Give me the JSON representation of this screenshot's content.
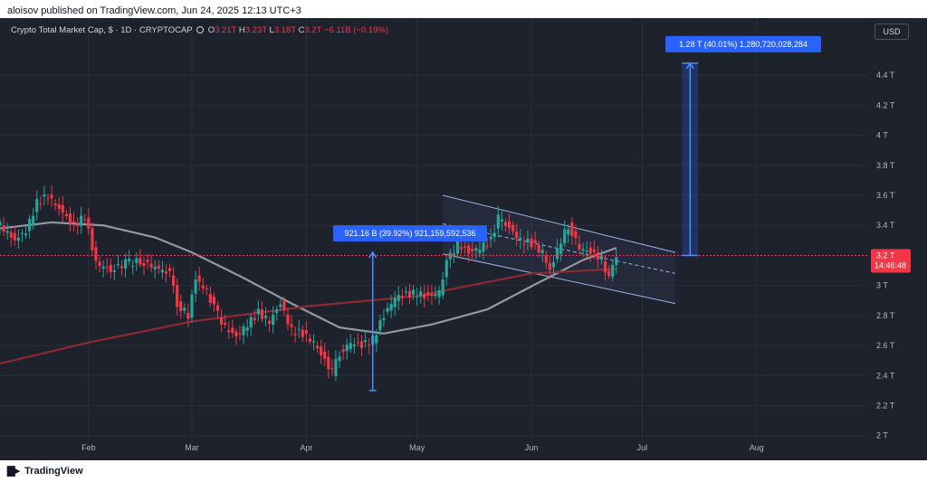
{
  "header": {
    "published_text": "aloisov published on TradingView.com, Jun 24, 2025 12:13 UTC+3"
  },
  "legend": {
    "symbol": "Crypto Total Market Cap, $ · 1D · CRYPTOCAP",
    "o_label": "O",
    "o_value": "3.21T",
    "h_label": "H",
    "h_value": "3.23T",
    "l_label": "L",
    "l_value": "3.18T",
    "c_label": "C",
    "c_value": "3.2T",
    "change": "−6.11B (−0.19%)"
  },
  "currency_button": "USD",
  "footer": {
    "brand": "TradingView",
    "logo_icon": "tradingview-logo-icon"
  },
  "colors": {
    "background": "#1e222d",
    "grid": "#2a2e39",
    "up": "#26a69a",
    "down": "#f23645",
    "ma_short": "#9598a1",
    "ma_long": "#8b2a33",
    "channel": "#9db2e6",
    "measure": "#2962ff",
    "measure_label_bg": "#2962ff",
    "price_label": "#f23645"
  },
  "chart_data": {
    "type": "candlestick",
    "title": "Crypto Total Market Cap",
    "y_unit": "T",
    "ylim": [
      1.95,
      4.6
    ],
    "y_ticks": [
      {
        "v": 4.4,
        "label": "4.4 T"
      },
      {
        "v": 4.2,
        "label": "4.2 T"
      },
      {
        "v": 4.0,
        "label": "4 T"
      },
      {
        "v": 3.8,
        "label": "3.8 T"
      },
      {
        "v": 3.6,
        "label": "3.6 T"
      },
      {
        "v": 3.4,
        "label": "3.4 T"
      },
      {
        "v": 3.0,
        "label": "3 T"
      },
      {
        "v": 2.8,
        "label": "2.8 T"
      },
      {
        "v": 2.6,
        "label": "2.6 T"
      },
      {
        "v": 2.4,
        "label": "2.4 T"
      },
      {
        "v": 2.2,
        "label": "2.2 T"
      },
      {
        "v": 2.0,
        "label": "2 T"
      }
    ],
    "x_range": [
      "2025-01-08",
      "2025-08-31"
    ],
    "x_ticks": [
      {
        "date": "2025-02-01",
        "label": "Feb"
      },
      {
        "date": "2025-03-01",
        "label": "Mar"
      },
      {
        "date": "2025-04-01",
        "label": "Apr"
      },
      {
        "date": "2025-05-01",
        "label": "May"
      },
      {
        "date": "2025-06-01",
        "label": "Jun"
      },
      {
        "date": "2025-07-01",
        "label": "Jul"
      },
      {
        "date": "2025-08-01",
        "label": "Aug"
      }
    ],
    "grid": true,
    "current_price": {
      "value": 3.2,
      "label": "3.2 T",
      "countdown": "14:46:48"
    },
    "closes": [
      {
        "date": "2025-01-08",
        "close": 3.4
      },
      {
        "date": "2025-01-12",
        "close": 3.3
      },
      {
        "date": "2025-01-15",
        "close": 3.36
      },
      {
        "date": "2025-01-18",
        "close": 3.55
      },
      {
        "date": "2025-01-21",
        "close": 3.6
      },
      {
        "date": "2025-01-25",
        "close": 3.48
      },
      {
        "date": "2025-01-28",
        "close": 3.4
      },
      {
        "date": "2025-01-31",
        "close": 3.46
      },
      {
        "date": "2025-02-03",
        "close": 3.15
      },
      {
        "date": "2025-02-07",
        "close": 3.1
      },
      {
        "date": "2025-02-11",
        "close": 3.15
      },
      {
        "date": "2025-02-15",
        "close": 3.16
      },
      {
        "date": "2025-02-19",
        "close": 3.12
      },
      {
        "date": "2025-02-23",
        "close": 3.08
      },
      {
        "date": "2025-02-25",
        "close": 2.88
      },
      {
        "date": "2025-02-28",
        "close": 2.8
      },
      {
        "date": "2025-03-02",
        "close": 3.05
      },
      {
        "date": "2025-03-05",
        "close": 2.96
      },
      {
        "date": "2025-03-07",
        "close": 2.85
      },
      {
        "date": "2025-03-10",
        "close": 2.72
      },
      {
        "date": "2025-03-13",
        "close": 2.66
      },
      {
        "date": "2025-03-16",
        "close": 2.74
      },
      {
        "date": "2025-03-19",
        "close": 2.82
      },
      {
        "date": "2025-03-22",
        "close": 2.76
      },
      {
        "date": "2025-03-25",
        "close": 2.88
      },
      {
        "date": "2025-03-28",
        "close": 2.7
      },
      {
        "date": "2025-03-31",
        "close": 2.68
      },
      {
        "date": "2025-04-03",
        "close": 2.62
      },
      {
        "date": "2025-04-06",
        "close": 2.5
      },
      {
        "date": "2025-04-08",
        "close": 2.42
      },
      {
        "date": "2025-04-10",
        "close": 2.55
      },
      {
        "date": "2025-04-13",
        "close": 2.62
      },
      {
        "date": "2025-04-16",
        "close": 2.6
      },
      {
        "date": "2025-04-19",
        "close": 2.64
      },
      {
        "date": "2025-04-22",
        "close": 2.8
      },
      {
        "date": "2025-04-25",
        "close": 2.92
      },
      {
        "date": "2025-04-28",
        "close": 2.94
      },
      {
        "date": "2025-05-01",
        "close": 2.95
      },
      {
        "date": "2025-05-04",
        "close": 2.92
      },
      {
        "date": "2025-05-07",
        "close": 2.96
      },
      {
        "date": "2025-05-09",
        "close": 3.15
      },
      {
        "date": "2025-05-12",
        "close": 3.28
      },
      {
        "date": "2025-05-15",
        "close": 3.22
      },
      {
        "date": "2025-05-18",
        "close": 3.25
      },
      {
        "date": "2025-05-21",
        "close": 3.3
      },
      {
        "date": "2025-05-23",
        "close": 3.45
      },
      {
        "date": "2025-05-26",
        "close": 3.38
      },
      {
        "date": "2025-05-29",
        "close": 3.3
      },
      {
        "date": "2025-06-01",
        "close": 3.28
      },
      {
        "date": "2025-06-04",
        "close": 3.22
      },
      {
        "date": "2025-06-06",
        "close": 3.1
      },
      {
        "date": "2025-06-09",
        "close": 3.3
      },
      {
        "date": "2025-06-11",
        "close": 3.4
      },
      {
        "date": "2025-06-14",
        "close": 3.25
      },
      {
        "date": "2025-06-17",
        "close": 3.22
      },
      {
        "date": "2025-06-20",
        "close": 3.18
      },
      {
        "date": "2025-06-22",
        "close": 3.04
      },
      {
        "date": "2025-06-24",
        "close": 3.2
      }
    ],
    "series": [
      {
        "name": "",
        "kind": "moving_average",
        "color": "#9598a1",
        "points": [
          {
            "date": "2025-01-08",
            "v": 3.38
          },
          {
            "date": "2025-01-22",
            "v": 3.42
          },
          {
            "date": "2025-02-05",
            "v": 3.4
          },
          {
            "date": "2025-02-19",
            "v": 3.32
          },
          {
            "date": "2025-03-01",
            "v": 3.22
          },
          {
            "date": "2025-03-15",
            "v": 3.05
          },
          {
            "date": "2025-03-28",
            "v": 2.88
          },
          {
            "date": "2025-04-10",
            "v": 2.72
          },
          {
            "date": "2025-04-22",
            "v": 2.68
          },
          {
            "date": "2025-05-05",
            "v": 2.74
          },
          {
            "date": "2025-05-20",
            "v": 2.84
          },
          {
            "date": "2025-06-03",
            "v": 3.02
          },
          {
            "date": "2025-06-15",
            "v": 3.17
          },
          {
            "date": "2025-06-24",
            "v": 3.25
          }
        ]
      },
      {
        "name": "",
        "kind": "moving_average",
        "color": "#8b2a33",
        "points": [
          {
            "date": "2025-01-08",
            "v": 2.48
          },
          {
            "date": "2025-02-01",
            "v": 2.62
          },
          {
            "date": "2025-03-01",
            "v": 2.76
          },
          {
            "date": "2025-04-01",
            "v": 2.86
          },
          {
            "date": "2025-05-01",
            "v": 2.93
          },
          {
            "date": "2025-06-01",
            "v": 3.08
          },
          {
            "date": "2025-06-24",
            "v": 3.11
          }
        ]
      }
    ],
    "annotations": {
      "measure_1": {
        "label": "921.16 B (39.92%) 921,159,592,536",
        "from": 2.3,
        "to": 3.22,
        "date": "2025-04-19"
      },
      "measure_2": {
        "label": "1.28 T (40.01%) 1,280,720,028,284",
        "from": 3.2,
        "to": 4.48,
        "date": "2025-07-14"
      },
      "channel": {
        "start": "2025-05-08",
        "end": "2025-07-10",
        "upper": [
          3.6,
          3.22
        ],
        "mid": [
          3.41,
          3.08
        ],
        "lower": [
          3.21,
          2.88
        ]
      }
    }
  }
}
